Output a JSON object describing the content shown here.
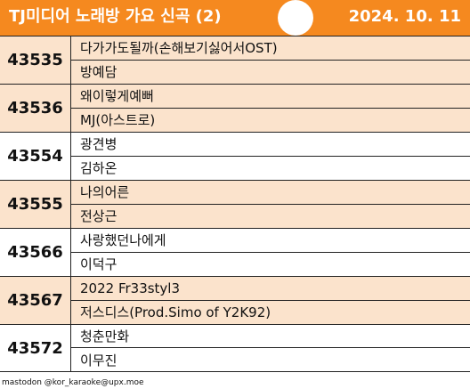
{
  "header": {
    "title": "TJ미디어 노래방 가요 신곡 (2)",
    "date": "2024. 10. 11"
  },
  "colors": {
    "header_bg": "#f5891f",
    "alt_row_bg": "#fbe3cc"
  },
  "songs": [
    {
      "number": "43535",
      "title": "다가가도될까(손해보기싫어서OST)",
      "artist": "방예담"
    },
    {
      "number": "43536",
      "title": "왜이렇게예뻐",
      "artist": "MJ(아스트로)"
    },
    {
      "number": "43554",
      "title": "광견병",
      "artist": "김하온"
    },
    {
      "number": "43555",
      "title": "나의어른",
      "artist": "전상근"
    },
    {
      "number": "43566",
      "title": "사랑했던나에게",
      "artist": "이덕구"
    },
    {
      "number": "43567",
      "title": "2022 Fr33styl3",
      "artist": "저스디스(Prod.Simo of Y2K92)"
    },
    {
      "number": "43572",
      "title": "청춘만화",
      "artist": "이무진"
    }
  ],
  "footer": {
    "credit": "mastodon @kor_karaoke@upx.moe"
  }
}
